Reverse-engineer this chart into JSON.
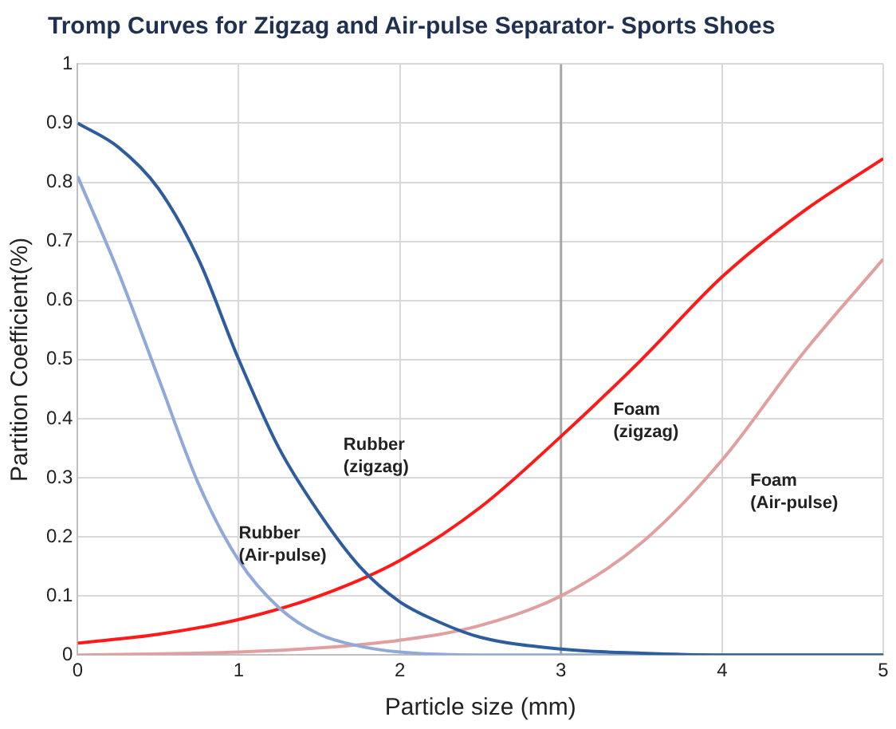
{
  "chart_data": {
    "type": "line",
    "title": "Tromp Curves for Zigzag  and Air-pulse Separator- Sports Shoes",
    "xlabel": "Particle size (mm)",
    "ylabel": "Partition Coefficient(%)",
    "xlim": [
      0,
      5
    ],
    "xticks": [
      0,
      1,
      2,
      3,
      4,
      5
    ],
    "ylim": [
      0,
      1
    ],
    "yticks": [
      0,
      0.1,
      0.2,
      0.3,
      0.4,
      0.5,
      0.6,
      0.7,
      0.8,
      0.9,
      1
    ],
    "grid": true,
    "legend": false,
    "marker": "none",
    "line_style": "solid",
    "ref_lines": [
      {
        "axis": "x",
        "value": 3,
        "color": "#a6a6a6"
      }
    ],
    "series": [
      {
        "name": "Rubber (zigzag)",
        "color": "#2e5d9e",
        "x": [
          0,
          0.25,
          0.5,
          0.75,
          1,
          1.25,
          1.5,
          1.75,
          2,
          2.25,
          2.5,
          3,
          3.5,
          4,
          5
        ],
        "values": [
          0.9,
          0.86,
          0.79,
          0.67,
          0.5,
          0.35,
          0.24,
          0.15,
          0.09,
          0.055,
          0.03,
          0.01,
          0.003,
          0,
          0
        ]
      },
      {
        "name": "Rubber (Air-pulse)",
        "color": "#8fa9d8",
        "x": [
          0,
          0.25,
          0.5,
          0.75,
          1,
          1.25,
          1.5,
          1.75,
          2,
          2.5,
          5
        ],
        "values": [
          0.81,
          0.65,
          0.47,
          0.29,
          0.16,
          0.08,
          0.035,
          0.015,
          0.005,
          0,
          0
        ]
      },
      {
        "name": "Foam (zigzag)",
        "color": "#ff1a1a",
        "x": [
          0,
          0.5,
          1,
          1.5,
          2,
          2.5,
          3,
          3.5,
          4,
          4.5,
          5
        ],
        "values": [
          0.02,
          0.035,
          0.06,
          0.1,
          0.16,
          0.25,
          0.37,
          0.5,
          0.64,
          0.75,
          0.84
        ]
      },
      {
        "name": "Foam (Air-pulse)",
        "color": "#e0a0a0",
        "x": [
          0,
          1,
          1.5,
          2,
          2.5,
          3,
          3.5,
          4,
          4.5,
          5
        ],
        "values": [
          0,
          0.005,
          0.012,
          0.025,
          0.05,
          0.1,
          0.19,
          0.33,
          0.51,
          0.67
        ]
      }
    ]
  }
}
